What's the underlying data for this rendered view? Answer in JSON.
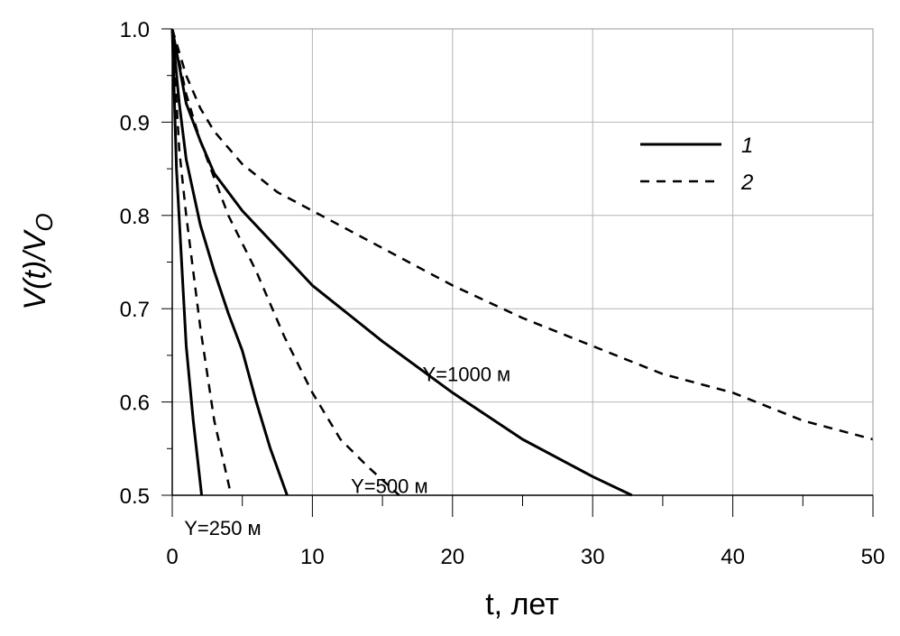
{
  "chart_data": {
    "type": "line",
    "title": "",
    "xlabel": "t, лет",
    "ylabel_main": "V(t)/V",
    "ylabel_sub": "O",
    "xlim": [
      0,
      50
    ],
    "ylim": [
      0.5,
      1.0
    ],
    "x_ticks": [
      0,
      10,
      20,
      30,
      40,
      50
    ],
    "x_tick_labels": [
      "0",
      "10",
      "20",
      "30",
      "40",
      "50"
    ],
    "y_ticks": [
      0.5,
      0.6,
      0.7,
      0.8,
      0.9,
      1.0
    ],
    "y_tick_labels": [
      "0.5",
      "0.6",
      "0.7",
      "0.8",
      "0.9",
      "1.0"
    ],
    "grid": true,
    "legend": {
      "position": "top-right",
      "entries": [
        {
          "label": "1",
          "style": "solid"
        },
        {
          "label": "2",
          "style": "dashed"
        }
      ]
    },
    "series": [
      {
        "name": "Y=250 м (1)",
        "style": "solid",
        "x": [
          0,
          0.3,
          1,
          1.5,
          2.1
        ],
        "y": [
          1.0,
          0.85,
          0.66,
          0.58,
          0.5
        ]
      },
      {
        "name": "Y=250 м (2)",
        "style": "dashed",
        "x": [
          0,
          0.5,
          1,
          2,
          3,
          4.2
        ],
        "y": [
          1.0,
          0.87,
          0.8,
          0.68,
          0.58,
          0.5
        ]
      },
      {
        "name": "Y=500 м (1)",
        "style": "solid",
        "x": [
          0,
          0.5,
          1,
          2,
          3,
          4,
          5,
          6,
          7,
          8.2
        ],
        "y": [
          1.0,
          0.92,
          0.86,
          0.79,
          0.74,
          0.695,
          0.655,
          0.6,
          0.55,
          0.5
        ]
      },
      {
        "name": "Y=500 м (2)",
        "style": "dashed",
        "x": [
          0,
          1,
          2,
          3,
          4,
          5,
          6,
          8,
          10,
          12,
          14,
          16.2
        ],
        "y": [
          1.0,
          0.93,
          0.88,
          0.84,
          0.8,
          0.77,
          0.74,
          0.67,
          0.61,
          0.56,
          0.53,
          0.5
        ]
      },
      {
        "name": "Y=1000 м (1)",
        "style": "solid",
        "x": [
          0,
          0.5,
          1,
          2,
          3,
          5,
          7.5,
          10,
          15,
          20,
          25,
          30,
          32.8
        ],
        "y": [
          1.0,
          0.96,
          0.92,
          0.88,
          0.845,
          0.805,
          0.765,
          0.725,
          0.665,
          0.61,
          0.56,
          0.52,
          0.5
        ]
      },
      {
        "name": "Y=1000 м (2)",
        "style": "dashed",
        "x": [
          0,
          1,
          2,
          3,
          5,
          7.5,
          10,
          15,
          20,
          25,
          30,
          35,
          40,
          45,
          50
        ],
        "y": [
          1.0,
          0.95,
          0.915,
          0.89,
          0.855,
          0.825,
          0.805,
          0.765,
          0.725,
          0.69,
          0.66,
          0.63,
          0.61,
          0.58,
          0.56
        ]
      }
    ],
    "annotations": [
      {
        "text": "Y=1000 м",
        "x": 21,
        "y": 0.63
      },
      {
        "text": "Y=500 м",
        "x": 15.5,
        "y": 0.51
      },
      {
        "text": "Y=250 м",
        "x": 3.6,
        "y": 0.465
      }
    ]
  }
}
